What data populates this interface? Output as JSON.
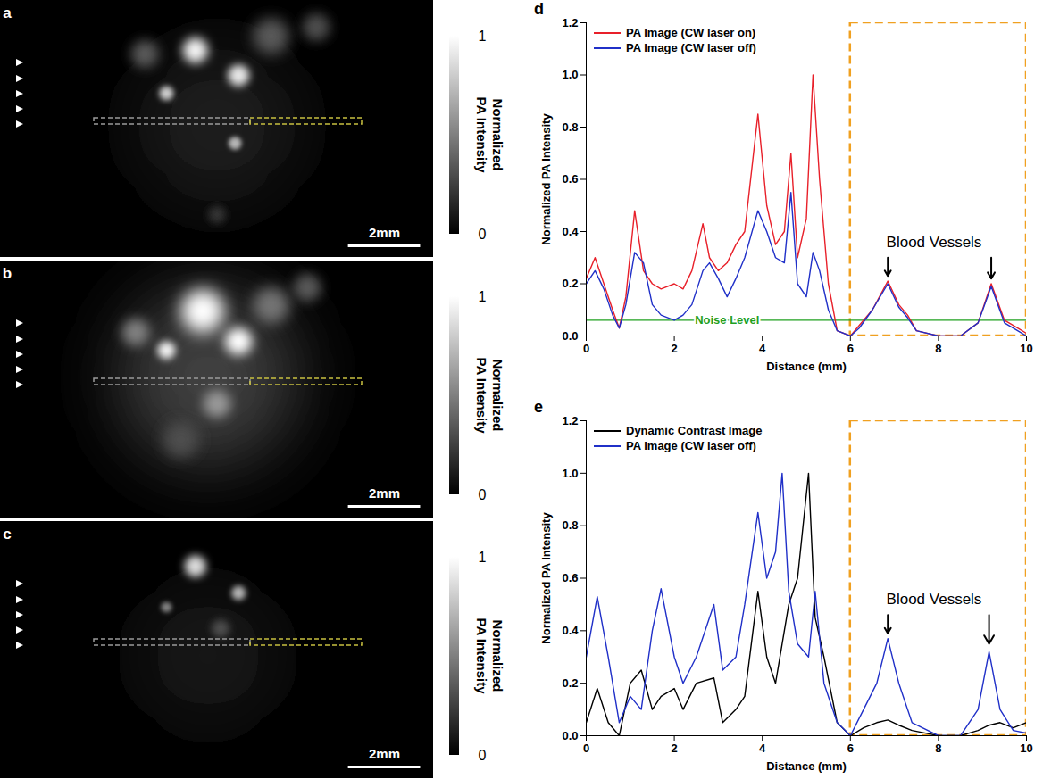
{
  "chart_data": [
    {
      "type": "image",
      "panel": "a",
      "xlim": [
        0,
        12
      ],
      "ylim": [
        0,
        7.2
      ],
      "tick_labels": false,
      "colorbar": {
        "label": "Normalized PA Intensity",
        "range": [
          0,
          1
        ],
        "ticks": [
          0,
          1
        ]
      },
      "scale_bar": {
        "length": 2,
        "label": "2mm"
      },
      "spots": [
        {
          "x": 6.0,
          "y": 3.5,
          "r": 2.25,
          "intensity": 0.12
        },
        {
          "x": 5.4,
          "y": 1.4,
          "r": 0.35,
          "intensity": 0.95
        },
        {
          "x": 6.6,
          "y": 2.1,
          "r": 0.3,
          "intensity": 0.9
        },
        {
          "x": 4.6,
          "y": 2.6,
          "r": 0.2,
          "intensity": 0.8
        },
        {
          "x": 6.5,
          "y": 4.0,
          "r": 0.18,
          "intensity": 0.7
        },
        {
          "x": 7.5,
          "y": 1.0,
          "r": 0.5,
          "intensity": 0.35
        },
        {
          "x": 8.75,
          "y": 0.75,
          "r": 0.38,
          "intensity": 0.3
        },
        {
          "x": 4.0,
          "y": 1.5,
          "r": 0.38,
          "intensity": 0.35
        },
        {
          "x": 6.0,
          "y": 6.0,
          "r": 0.25,
          "intensity": 0.2
        }
      ]
    },
    {
      "type": "image",
      "panel": "b",
      "xlim": [
        0,
        12
      ],
      "ylim": [
        0,
        7.2
      ],
      "tick_labels": false,
      "colorbar": {
        "label": "Normalized PA Intensity",
        "range": [
          0,
          1
        ],
        "ticks": [
          0,
          1
        ]
      },
      "scale_bar": {
        "length": 2,
        "label": "2mm"
      },
      "spots": [
        {
          "x": 5.75,
          "y": 3.25,
          "r": 2.5,
          "intensity": 0.25
        },
        {
          "x": 5.6,
          "y": 1.4,
          "r": 0.6,
          "intensity": 1.0
        },
        {
          "x": 6.6,
          "y": 2.25,
          "r": 0.38,
          "intensity": 1.0
        },
        {
          "x": 4.6,
          "y": 2.5,
          "r": 0.25,
          "intensity": 0.95
        },
        {
          "x": 3.75,
          "y": 2.0,
          "r": 0.38,
          "intensity": 0.5
        },
        {
          "x": 7.5,
          "y": 1.25,
          "r": 0.5,
          "intensity": 0.45
        },
        {
          "x": 8.5,
          "y": 0.75,
          "r": 0.38,
          "intensity": 0.35
        },
        {
          "x": 6.0,
          "y": 4.0,
          "r": 0.38,
          "intensity": 0.6
        },
        {
          "x": 5.0,
          "y": 5.0,
          "r": 0.5,
          "intensity": 0.3
        }
      ]
    },
    {
      "type": "image",
      "panel": "c",
      "xlim": [
        0,
        12
      ],
      "ylim": [
        0,
        7.2
      ],
      "tick_labels": false,
      "colorbar": {
        "label": "Normalized PA Intensity",
        "range": [
          0,
          1
        ],
        "ticks": [
          0,
          1
        ]
      },
      "scale_bar": {
        "length": 2,
        "label": "2mm"
      },
      "spots": [
        {
          "x": 5.75,
          "y": 3.75,
          "r": 2.0,
          "intensity": 0.08
        },
        {
          "x": 5.4,
          "y": 1.25,
          "r": 0.3,
          "intensity": 0.85
        },
        {
          "x": 6.6,
          "y": 2.0,
          "r": 0.2,
          "intensity": 0.7
        },
        {
          "x": 4.6,
          "y": 2.4,
          "r": 0.15,
          "intensity": 0.5
        },
        {
          "x": 6.1,
          "y": 3.0,
          "r": 0.25,
          "intensity": 0.3
        }
      ]
    },
    {
      "type": "line",
      "panel": "d",
      "x_label": "Distance (mm)",
      "y_label": "Normalized PA Intensity",
      "xlim": [
        0,
        10
      ],
      "ylim": [
        0,
        1.2
      ],
      "xticks": [
        0,
        2,
        4,
        6,
        8,
        10
      ],
      "yticks": [
        {
          "value": 0,
          "label": "0.0"
        },
        {
          "value": 0.2,
          "label": "0.2"
        },
        {
          "value": 0.4,
          "label": "0.4"
        },
        {
          "value": 0.6,
          "label": "0.6"
        },
        {
          "value": 0.8,
          "label": "0.8"
        },
        {
          "value": 1.0,
          "label": "1.0"
        },
        {
          "value": 1.2,
          "label": "1.2"
        }
      ],
      "legend": "top-left",
      "x": [
        0,
        0.2,
        0.4,
        0.6,
        0.75,
        0.9,
        1.1,
        1.3,
        1.5,
        1.7,
        2.0,
        2.2,
        2.4,
        2.65,
        2.8,
        3.0,
        3.2,
        3.4,
        3.6,
        3.9,
        4.1,
        4.3,
        4.5,
        4.65,
        4.8,
        5.0,
        5.15,
        5.3,
        5.5,
        5.7,
        6.0,
        6.2,
        6.5,
        6.85,
        7.1,
        7.3,
        7.5,
        8.0,
        8.5,
        8.9,
        9.2,
        9.5,
        9.8,
        10
      ],
      "series": [
        {
          "name": "PA Image (CW laser on)",
          "color": "#e8202a",
          "values": [
            0.22,
            0.3,
            0.2,
            0.1,
            0.03,
            0.15,
            0.48,
            0.25,
            0.2,
            0.18,
            0.2,
            0.18,
            0.25,
            0.43,
            0.3,
            0.25,
            0.28,
            0.35,
            0.4,
            0.85,
            0.5,
            0.35,
            0.4,
            0.7,
            0.3,
            0.45,
            1.0,
            0.6,
            0.2,
            0.02,
            0.0,
            0.04,
            0.1,
            0.21,
            0.12,
            0.08,
            0.02,
            0.0,
            0.0,
            0.05,
            0.2,
            0.06,
            0.03,
            0.01
          ]
        },
        {
          "name": "PA Image (CW laser off)",
          "color": "#2030c8",
          "values": [
            0.2,
            0.25,
            0.18,
            0.08,
            0.03,
            0.12,
            0.32,
            0.28,
            0.12,
            0.08,
            0.06,
            0.08,
            0.12,
            0.25,
            0.28,
            0.22,
            0.15,
            0.22,
            0.3,
            0.48,
            0.4,
            0.3,
            0.28,
            0.55,
            0.2,
            0.15,
            0.32,
            0.25,
            0.1,
            0.02,
            0.0,
            0.03,
            0.1,
            0.2,
            0.11,
            0.07,
            0.02,
            0.0,
            0.0,
            0.05,
            0.19,
            0.05,
            0.02,
            0.0
          ]
        }
      ],
      "reference_lines": [
        {
          "y": 0.06,
          "label": "Noise Level",
          "color": "#1fa01f",
          "label_x": 3.2
        }
      ],
      "highlight": {
        "x": [
          6,
          10
        ],
        "color": "#f0a020"
      },
      "annotations": [
        {
          "text": "Blood Vessels",
          "x": 7.9,
          "y": 0.36,
          "arrows": [
            {
              "x": 6.85,
              "y1": 0.3,
              "y2": 0.23
            },
            {
              "x": 9.2,
              "y1": 0.3,
              "y2": 0.22
            }
          ]
        }
      ]
    },
    {
      "type": "line",
      "panel": "e",
      "x_label": "Distance (mm)",
      "y_label": "Normalized PA Intensity",
      "xlim": [
        0,
        10
      ],
      "ylim": [
        0,
        1.2
      ],
      "xticks": [
        0,
        2,
        4,
        6,
        8,
        10
      ],
      "yticks": [
        {
          "value": 0,
          "label": "0.0"
        },
        {
          "value": 0.2,
          "label": "0.2"
        },
        {
          "value": 0.4,
          "label": "0.4"
        },
        {
          "value": 0.6,
          "label": "0.6"
        },
        {
          "value": 0.8,
          "label": "0.8"
        },
        {
          "value": 1.0,
          "label": "1.0"
        },
        {
          "value": 1.2,
          "label": "1.2"
        }
      ],
      "legend": "top-left",
      "x": [
        0,
        0.25,
        0.5,
        0.75,
        1.0,
        1.25,
        1.5,
        1.7,
        2.0,
        2.2,
        2.5,
        2.9,
        3.1,
        3.4,
        3.6,
        3.9,
        4.1,
        4.3,
        4.45,
        4.6,
        4.8,
        5.05,
        5.2,
        5.4,
        5.7,
        6.0,
        6.3,
        6.6,
        6.85,
        7.1,
        7.4,
        8.0,
        8.5,
        8.9,
        9.15,
        9.4,
        9.7,
        10
      ],
      "series": [
        {
          "name": "Dynamic Contrast Image",
          "color": "#000000",
          "values": [
            0.05,
            0.18,
            0.05,
            0.0,
            0.2,
            0.25,
            0.1,
            0.15,
            0.18,
            0.1,
            0.2,
            0.22,
            0.05,
            0.1,
            0.15,
            0.55,
            0.3,
            0.2,
            0.35,
            0.5,
            0.6,
            1.0,
            0.45,
            0.3,
            0.05,
            0.0,
            0.03,
            0.05,
            0.06,
            0.04,
            0.02,
            0.0,
            0.0,
            0.02,
            0.04,
            0.05,
            0.03,
            0.05
          ]
        },
        {
          "name": "PA Image (CW laser off)",
          "color": "#2030c8",
          "values": [
            0.3,
            0.53,
            0.3,
            0.05,
            0.15,
            0.1,
            0.4,
            0.56,
            0.3,
            0.2,
            0.3,
            0.5,
            0.25,
            0.3,
            0.5,
            0.85,
            0.6,
            0.7,
            1.0,
            0.55,
            0.35,
            0.3,
            0.55,
            0.2,
            0.05,
            0.0,
            0.1,
            0.2,
            0.37,
            0.2,
            0.05,
            0.0,
            0.0,
            0.1,
            0.32,
            0.1,
            0.02,
            0.01
          ]
        }
      ],
      "highlight": {
        "x": [
          6,
          10
        ],
        "color": "#f0a020"
      },
      "annotations": [
        {
          "text": "Blood Vessels",
          "x": 7.9,
          "y": 0.52,
          "arrows": [
            {
              "x": 6.85,
              "y1": 0.46,
              "y2": 0.39
            },
            {
              "x": 9.15,
              "y1": 0.46,
              "y2": 0.35
            }
          ]
        }
      ]
    }
  ]
}
